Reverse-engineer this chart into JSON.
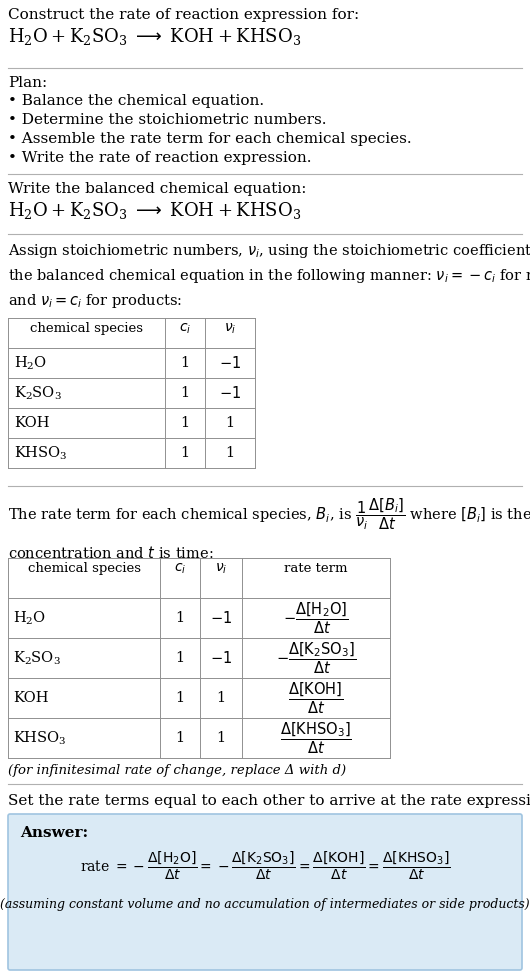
{
  "bg_color": "#ffffff",
  "text_color": "#000000",
  "answer_box_color": "#daeaf5",
  "answer_box_edge": "#a0c4e0",
  "title_line1": "Construct the rate of reaction expression for:",
  "plan_title": "Plan:",
  "plan_items": [
    "• Balance the chemical equation.",
    "• Determine the stoichiometric numbers.",
    "• Assemble the rate term for each chemical species.",
    "• Write the rate of reaction expression."
  ],
  "balanced_label": "Write the balanced chemical equation:",
  "infinitesimal_note": "(for infinitesimal rate of change, replace Δ with d)",
  "set_equal_label": "Set the rate terms equal to each other to arrive at the rate expression:",
  "answer_label": "Answer:",
  "answer_note": "(assuming constant volume and no accumulation of intermediates or side products)"
}
